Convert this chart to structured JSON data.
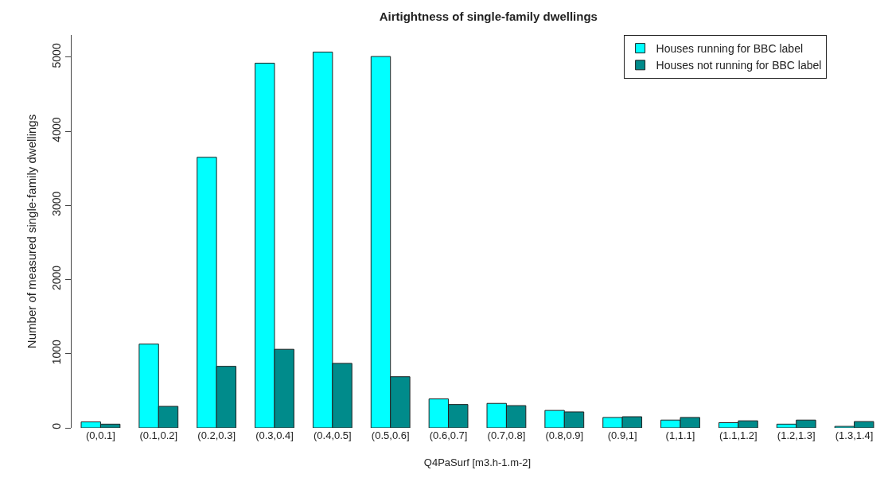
{
  "chart_data": {
    "type": "bar",
    "title": "Airtightness of single-family dwellings",
    "xlabel": "Q4PaSurf [m3.h-1.m-2]",
    "ylabel": "Number of measured single-family dwellings",
    "categories": [
      "(0,0.1]",
      "(0.1,0.2]",
      "(0.2,0.3]",
      "(0.3,0.4]",
      "(0.4,0.5]",
      "(0.5,0.6]",
      "(0.6,0.7]",
      "(0.7,0.8]",
      "(0.8,0.9]",
      "(0.9,1]",
      "(1,1.1]",
      "(1.1,1.2]",
      "(1.2,1.3]",
      "(1.3,1.4]"
    ],
    "series": [
      {
        "name": "Houses running for BBC label",
        "color": "#00ffff",
        "values": [
          80,
          1130,
          3650,
          4920,
          5070,
          5010,
          390,
          330,
          235,
          140,
          105,
          70,
          50,
          20
        ]
      },
      {
        "name": "Houses not running for BBC label",
        "color": "#008b8b",
        "values": [
          50,
          290,
          830,
          1060,
          870,
          690,
          315,
          300,
          215,
          150,
          140,
          95,
          105,
          85
        ]
      }
    ],
    "ylim": [
      0,
      5300
    ],
    "yticks": [
      0,
      1000,
      2000,
      3000,
      4000,
      5000
    ],
    "grid": false,
    "legend": "top right"
  }
}
